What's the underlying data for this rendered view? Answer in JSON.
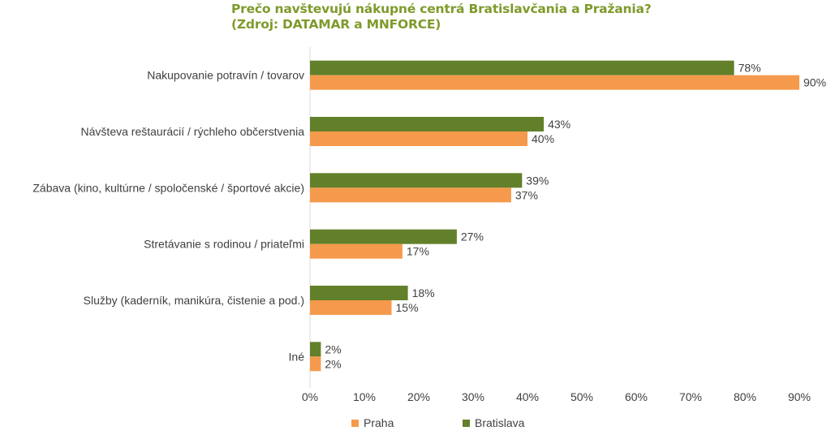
{
  "title": {
    "line1": "Prečo navštevujú nákupné centrá Bratislavčania a Pražania?",
    "line2": "(Zdroj: DATAMAR a MNFORCE)"
  },
  "colors": {
    "title": "#7f9a2c",
    "Bratislava": "#62802a",
    "Praha": "#f59a4c",
    "text": "#404040",
    "axis": "#d9d9d9"
  },
  "chart_data": {
    "type": "bar",
    "orientation": "horizontal",
    "categories": [
      "Nakupovanie potravín / tovarov",
      "Návšteva reštaurácií / rýchleho občerstvenia",
      "Zábava (kino, kultúrne / spoločenské / športové akcie)",
      "Stretávanie s rodinou / priateľmi",
      "Služby (kaderník, manikúra, čistenie a pod.)",
      "Iné"
    ],
    "series": [
      {
        "name": "Bratislava",
        "values": [
          78,
          43,
          39,
          27,
          18,
          2
        ]
      },
      {
        "name": "Praha",
        "values": [
          90,
          40,
          37,
          17,
          15,
          2
        ]
      }
    ],
    "value_suffix": "%",
    "xlim": [
      0,
      90
    ],
    "xticks": [
      "0%",
      "10%",
      "20%",
      "30%",
      "40%",
      "50%",
      "60%",
      "70%",
      "80%",
      "90%"
    ],
    "grid": false,
    "legend": "bottom",
    "legend_items": [
      "Praha",
      "Bratislava"
    ]
  }
}
